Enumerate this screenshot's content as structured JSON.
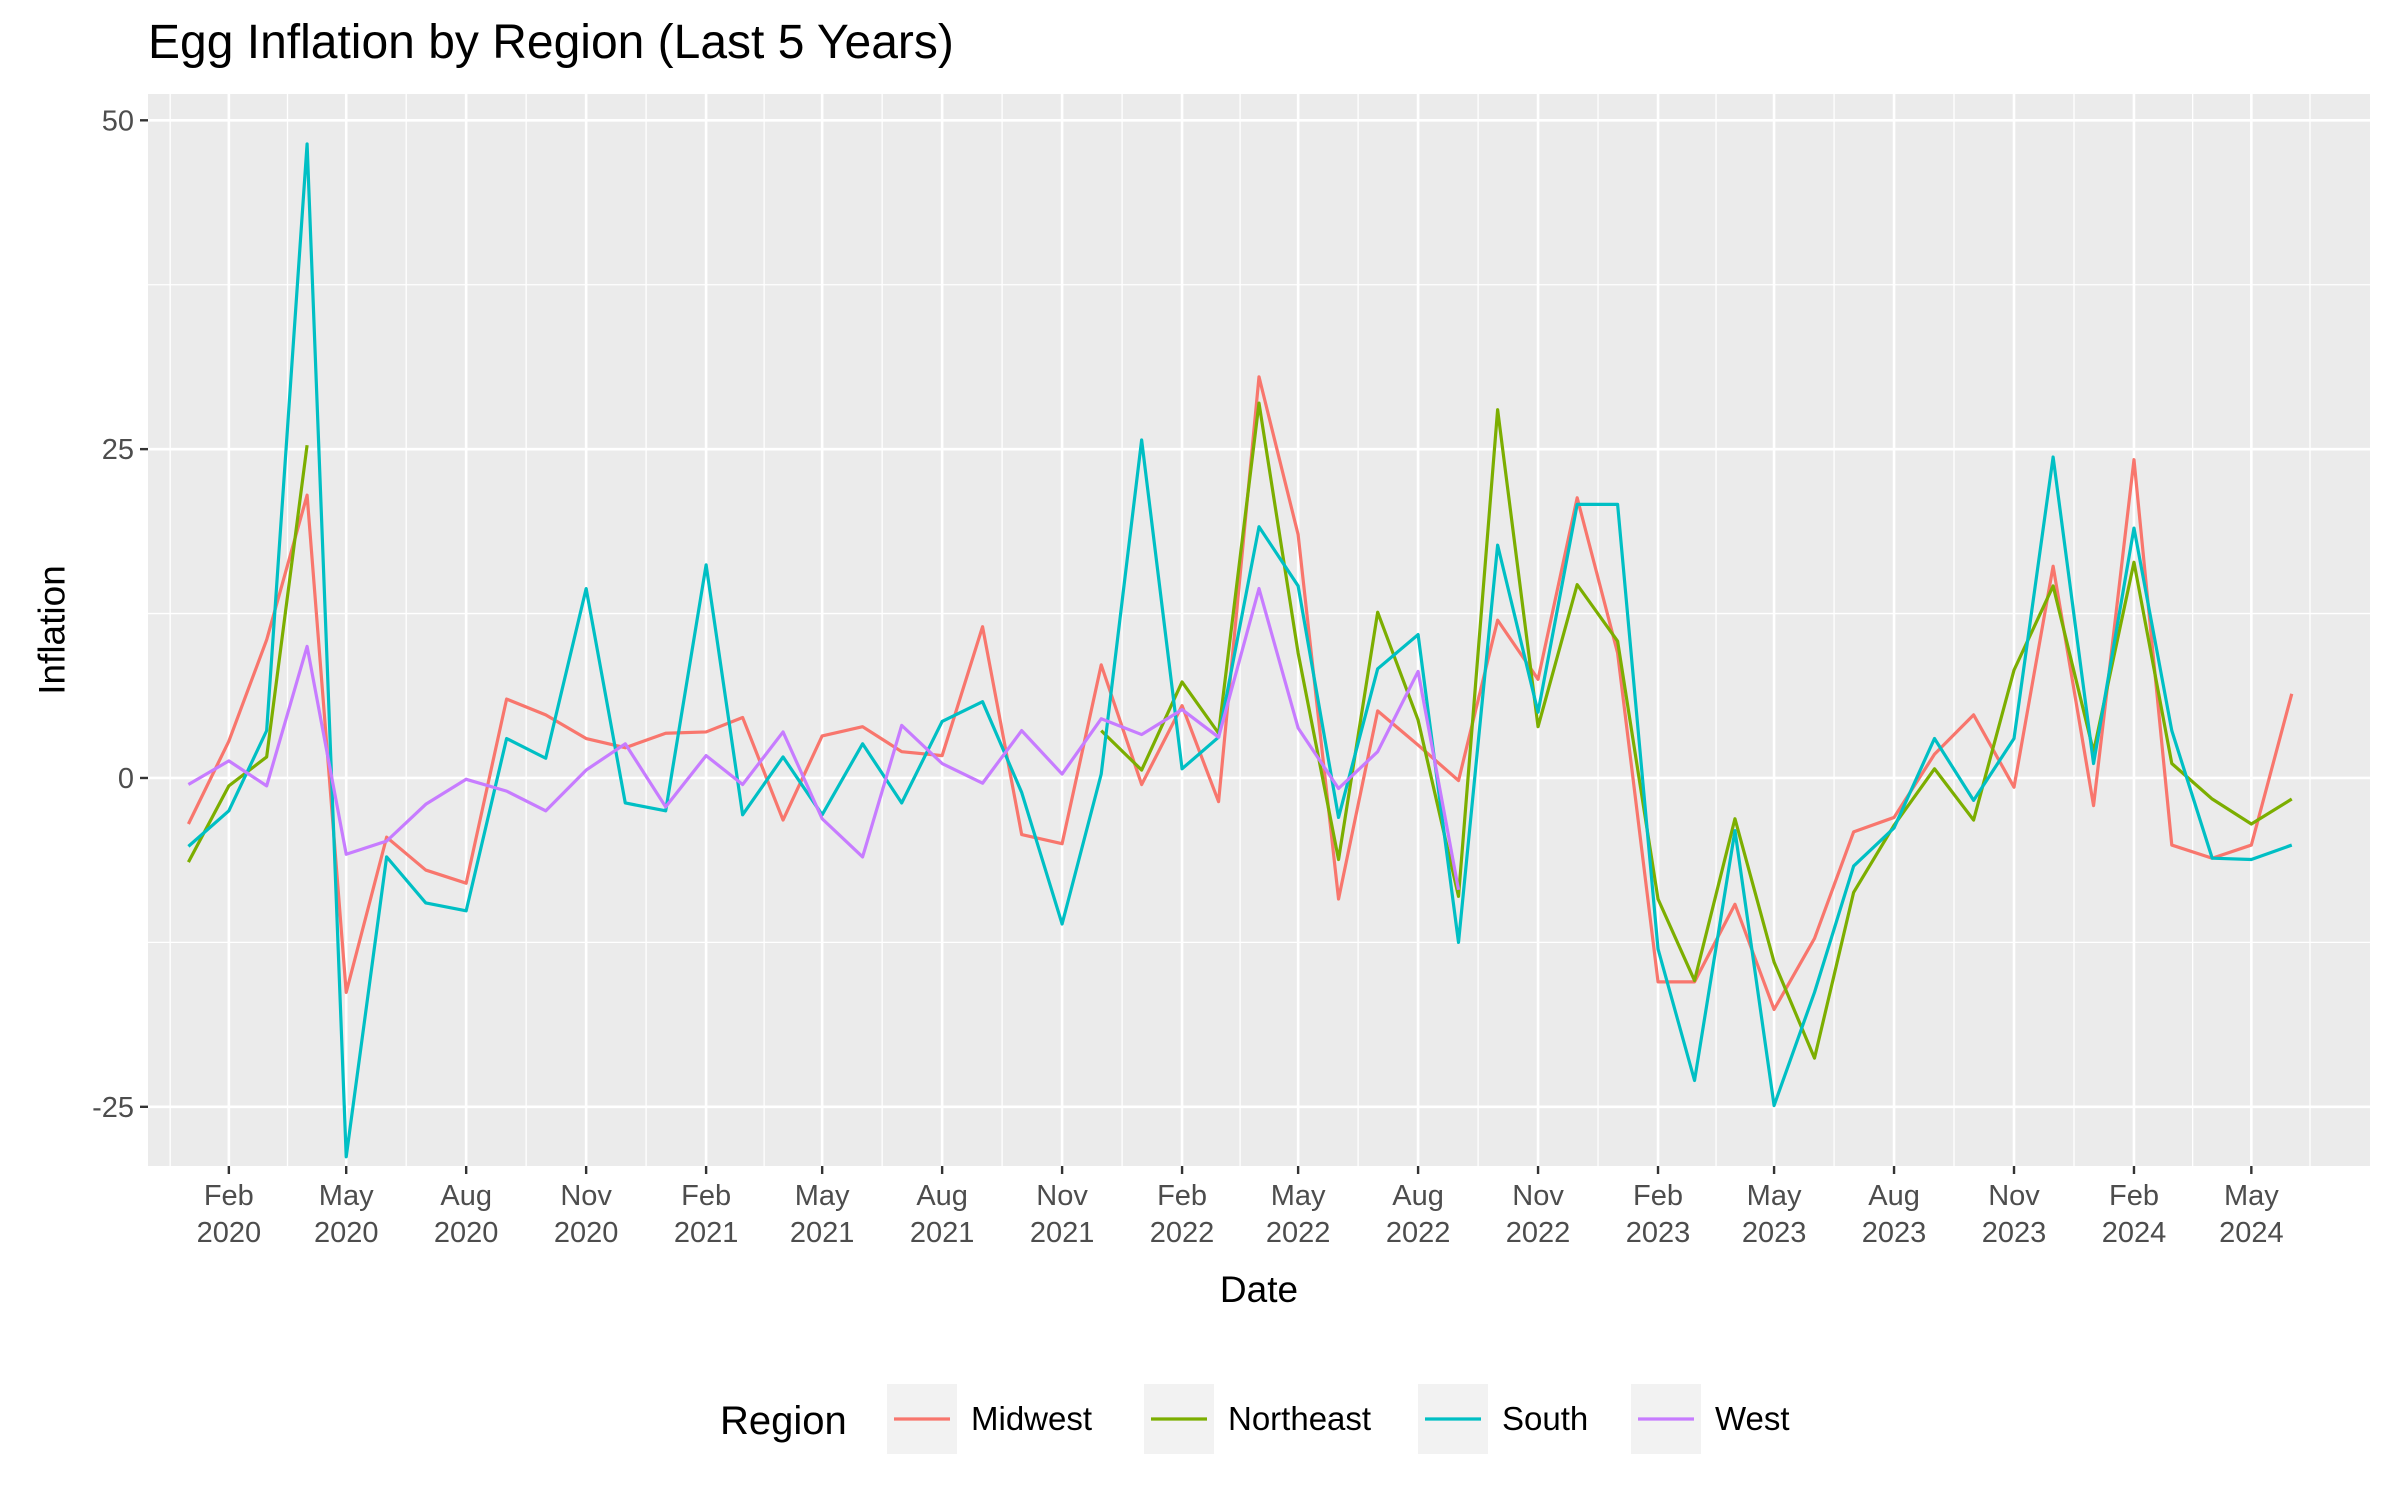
{
  "chart_data": {
    "type": "line",
    "title": "Egg Inflation by Region (Last 5 Years)",
    "xlabel": "Date",
    "ylabel": "Inflation",
    "ylim": [
      -29.5,
      52
    ],
    "xlim": [
      "2019-12-01",
      "2024-07-31"
    ],
    "grid": true,
    "legend_position": "bottom",
    "legend_title": "Region",
    "y_ticks": [
      -25,
      0,
      25,
      50
    ],
    "y_tick_labels": [
      "-25",
      "0",
      "25",
      "50"
    ],
    "x_ticks": [
      "2020-02-01",
      "2020-05-01",
      "2020-08-01",
      "2020-11-01",
      "2021-02-01",
      "2021-05-01",
      "2021-08-01",
      "2021-11-01",
      "2022-02-01",
      "2022-05-01",
      "2022-08-01",
      "2022-11-01",
      "2023-02-01",
      "2023-05-01",
      "2023-08-01",
      "2023-11-01",
      "2024-02-01",
      "2024-05-01"
    ],
    "x_tick_labels": [
      [
        "Feb",
        "2020"
      ],
      [
        "May",
        "2020"
      ],
      [
        "Aug",
        "2020"
      ],
      [
        "Nov",
        "2020"
      ],
      [
        "Feb",
        "2021"
      ],
      [
        "May",
        "2021"
      ],
      [
        "Aug",
        "2021"
      ],
      [
        "Nov",
        "2021"
      ],
      [
        "Feb",
        "2022"
      ],
      [
        "May",
        "2022"
      ],
      [
        "Aug",
        "2022"
      ],
      [
        "Nov",
        "2022"
      ],
      [
        "Feb",
        "2023"
      ],
      [
        "May",
        "2023"
      ],
      [
        "Aug",
        "2023"
      ],
      [
        "Nov",
        "2023"
      ],
      [
        "Feb",
        "2024"
      ],
      [
        "May",
        "2024"
      ]
    ],
    "x": [
      "2020-01-01",
      "2020-02-01",
      "2020-03-01",
      "2020-04-01",
      "2020-05-01",
      "2020-06-01",
      "2020-07-01",
      "2020-08-01",
      "2020-09-01",
      "2020-10-01",
      "2020-11-01",
      "2020-12-01",
      "2021-01-01",
      "2021-02-01",
      "2021-03-01",
      "2021-04-01",
      "2021-05-01",
      "2021-06-01",
      "2021-07-01",
      "2021-08-01",
      "2021-09-01",
      "2021-10-01",
      "2021-11-01",
      "2021-12-01",
      "2022-01-01",
      "2022-02-01",
      "2022-03-01",
      "2022-04-01",
      "2022-05-01",
      "2022-06-01",
      "2022-07-01",
      "2022-08-01",
      "2022-09-01",
      "2022-10-01",
      "2022-11-01",
      "2022-12-01",
      "2023-01-01",
      "2023-02-01",
      "2023-03-01",
      "2023-04-01",
      "2023-05-01",
      "2023-06-01",
      "2023-07-01",
      "2023-08-01",
      "2023-09-01",
      "2023-10-01",
      "2023-11-01",
      "2023-12-01",
      "2024-01-01",
      "2024-02-01",
      "2024-03-01",
      "2024-04-01",
      "2024-05-01",
      "2024-06-01"
    ],
    "series": [
      {
        "name": "Midwest",
        "color": "#F8766D",
        "values": [
          -3.5,
          2.8,
          10.5,
          21.5,
          -16.3,
          -4.5,
          -7,
          -8,
          6,
          4.8,
          3,
          2.3,
          3.4,
          3.5,
          4.6,
          -3.2,
          3.2,
          3.9,
          2,
          1.7,
          11.5,
          -4.3,
          -5,
          8.6,
          -0.5,
          5.5,
          -1.8,
          30.5,
          18.5,
          -9.2,
          5.1,
          2.5,
          -0.2,
          12,
          7.5,
          21.3,
          9.5,
          -15.5,
          -15.5,
          -9.6,
          -17.6,
          -12.2,
          -4.1,
          -3,
          1.8,
          4.8,
          -0.7,
          16.1,
          -2.1,
          24.2,
          -5.1,
          -6.1,
          -5.1,
          6.4
        ]
      },
      {
        "name": "Northeast",
        "color": "#7CAE00",
        "values": [
          -6.4,
          -0.6,
          1.6,
          25.3,
          null,
          null,
          null,
          null,
          null,
          null,
          null,
          null,
          null,
          null,
          null,
          null,
          null,
          null,
          null,
          null,
          null,
          null,
          null,
          3.6,
          0.6,
          7.3,
          3.4,
          28.5,
          9.5,
          -6.2,
          12.6,
          4.4,
          -9,
          28,
          3.9,
          14.7,
          10.4,
          -9.2,
          -15.4,
          -3.1,
          -14,
          -21.3,
          -8.7,
          -3.6,
          0.7,
          -3.2,
          8.2,
          14.6,
          2,
          16.4,
          1.1,
          -1.6,
          -3.5,
          -1.6
        ]
      },
      {
        "name": "South",
        "color": "#00BFC4",
        "values": [
          -5.2,
          -2.5,
          3.6,
          48.2,
          -28.8,
          -6,
          -9.5,
          -10.1,
          3,
          1.5,
          14.4,
          -1.9,
          -2.5,
          16.2,
          -2.8,
          1.6,
          -2.8,
          2.6,
          -1.9,
          4.3,
          5.8,
          -1.1,
          -11.1,
          0.3,
          25.7,
          0.7,
          3.1,
          19.1,
          14.6,
          -3,
          8.3,
          10.9,
          -12.5,
          17.7,
          5,
          20.8,
          20.8,
          -13,
          -23,
          -4,
          -24.9,
          -16.3,
          -6.7,
          -3.8,
          3,
          -1.7,
          3,
          24.4,
          1.1,
          19,
          3.6,
          -6.1,
          -6.2,
          -5.1
        ]
      },
      {
        "name": "West",
        "color": "#C77CFF",
        "values": [
          -0.5,
          1.3,
          -0.6,
          10,
          -5.8,
          -4.8,
          -2,
          -0.1,
          -1,
          -2.5,
          0.6,
          2.6,
          -2.2,
          1.7,
          -0.5,
          3.5,
          -3.1,
          -6,
          4,
          1.1,
          -0.4,
          3.6,
          0.3,
          4.5,
          3.3,
          5.2,
          3.1,
          14.4,
          3.8,
          -0.8,
          2,
          8.1,
          -8.5,
          null,
          null,
          null,
          null,
          null,
          null,
          null,
          null,
          null,
          null,
          null,
          null,
          null,
          null,
          null,
          null,
          null,
          null,
          null,
          null,
          null
        ]
      }
    ]
  }
}
